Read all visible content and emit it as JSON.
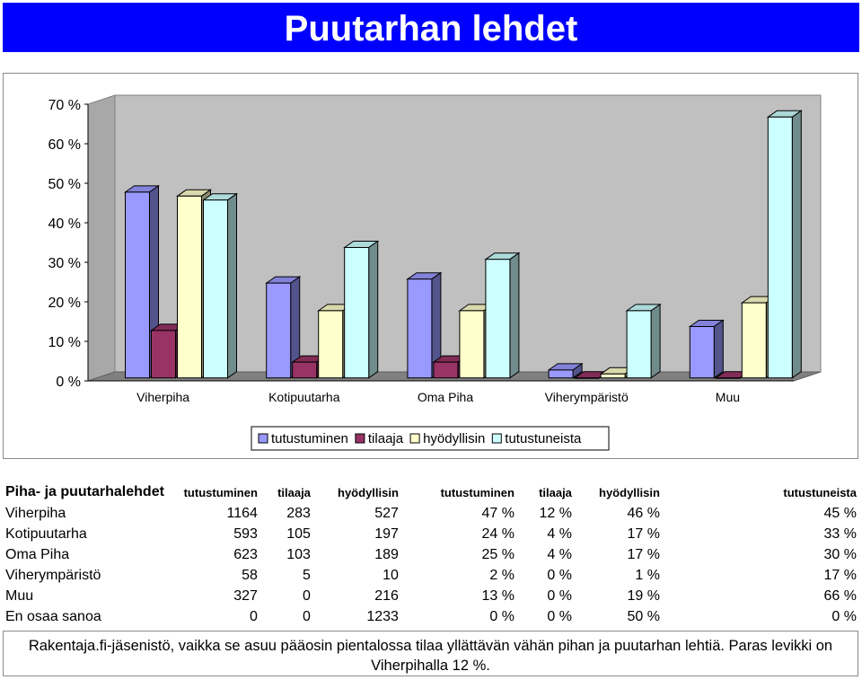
{
  "title": "Puutarhan lehdet",
  "colors": {
    "title_bg": "#0000ff",
    "title_text": "#ffffff",
    "series": [
      "#9999ff",
      "#993366",
      "#ffffcc",
      "#ccffff"
    ]
  },
  "chart_data": {
    "type": "bar",
    "title": "",
    "categories": [
      "Viherpiha",
      "Kotipuutarha",
      "Oma Piha",
      "Viherympäristö",
      "Muu"
    ],
    "series": [
      {
        "name": "tutustuminen",
        "values": [
          47,
          24,
          25,
          2,
          13
        ]
      },
      {
        "name": "tilaaja",
        "values": [
          12,
          4,
          4,
          0,
          0
        ]
      },
      {
        "name": "hyödyllisin",
        "values": [
          46,
          17,
          17,
          1,
          19
        ]
      },
      {
        "name": "tutustuneista",
        "values": [
          45,
          33,
          30,
          17,
          66
        ]
      }
    ],
    "y_ticks": [
      "0 %",
      "10 %",
      "20 %",
      "30 %",
      "40 %",
      "50 %",
      "60 %",
      "70 %"
    ],
    "ylim": [
      0,
      70
    ],
    "legend_position": "bottom",
    "grid": false,
    "style": "3d-clustered"
  },
  "table": {
    "header": "Piha- ja puutarhalehdet",
    "columns": [
      "tutustuminen",
      "tilaaja",
      "hyödyllisin",
      "tutustuminen",
      "tilaaja",
      "hyödyllisin",
      "tutustuneista"
    ],
    "rows": [
      {
        "name": "Viherpiha",
        "cells": [
          "1164",
          "283",
          "527",
          "47 %",
          "12 %",
          "46 %",
          "45 %"
        ]
      },
      {
        "name": "Kotipuutarha",
        "cells": [
          "593",
          "105",
          "197",
          "24 %",
          "4 %",
          "17 %",
          "33 %"
        ]
      },
      {
        "name": "Oma Piha",
        "cells": [
          "623",
          "103",
          "189",
          "25 %",
          "4 %",
          "17 %",
          "30 %"
        ]
      },
      {
        "name": "Viherympäristö",
        "cells": [
          "58",
          "5",
          "10",
          "2 %",
          "0 %",
          "1 %",
          "17 %"
        ]
      },
      {
        "name": "Muu",
        "cells": [
          "327",
          "0",
          "216",
          "13 %",
          "0 %",
          "19 %",
          "66 %"
        ]
      },
      {
        "name": "En osaa sanoa",
        "cells": [
          "0",
          "0",
          "1233",
          "0 %",
          "0 %",
          "50 %",
          "0 %"
        ]
      }
    ]
  },
  "footnote": "Rakentaja.fi-jäsenistö, vaikka se asuu pääosin pientalossa tilaa yllättävän vähän pihan ja puutarhan lehtiä. Paras levikki on Viherpihalla 12 %."
}
